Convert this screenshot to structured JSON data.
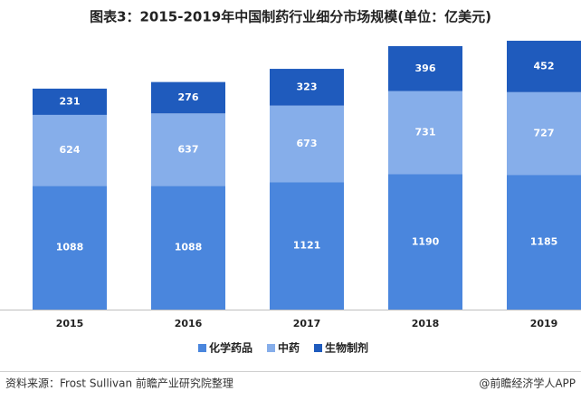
{
  "chart_data": {
    "type": "stacked_bar",
    "title": "图表3：2015-2019年中国制药行业细分市场规模(单位：亿美元)",
    "categories": [
      "2015",
      "2016",
      "2017",
      "2018",
      "2019"
    ],
    "series": [
      {
        "name": "化学药品",
        "color": "#4a86dd",
        "values": [
          1088,
          1088,
          1121,
          1190,
          1185
        ]
      },
      {
        "name": "中药",
        "color": "#86aeea",
        "values": [
          624,
          637,
          673,
          731,
          727
        ]
      },
      {
        "name": "生物制剂",
        "color": "#1f5bbd",
        "values": [
          231,
          276,
          323,
          396,
          452
        ]
      }
    ],
    "ylim": [
      0,
      2400
    ],
    "source": "资料来源：Frost Sullivan  前瞻产业研究院整理",
    "credit": "@前瞻经济学人APP"
  }
}
